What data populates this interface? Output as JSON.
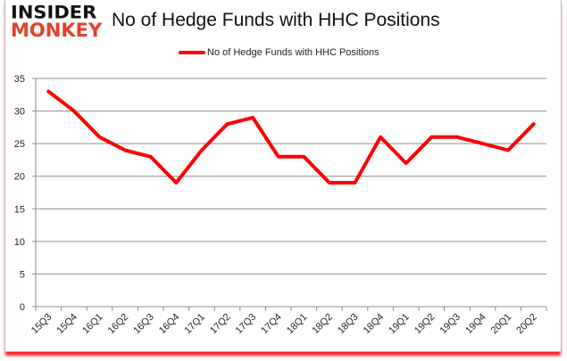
{
  "header": {
    "logo_line1": "INSIDER",
    "logo_line2": "MONKEY",
    "title": "No of Hedge Funds with HHC Positions"
  },
  "legend": {
    "label": "No of Hedge Funds with HHC Positions",
    "color": "#ff0000"
  },
  "chart_data": {
    "type": "line",
    "title": "No of Hedge Funds with HHC Positions",
    "xlabel": "",
    "ylabel": "",
    "ylim": [
      0,
      35
    ],
    "yticks": [
      0,
      5,
      10,
      15,
      20,
      25,
      30,
      35
    ],
    "grid": true,
    "legend_position": "top",
    "categories": [
      "15Q3",
      "15Q4",
      "16Q1",
      "16Q2",
      "16Q3",
      "16Q4",
      "17Q1",
      "17Q2",
      "17Q3",
      "17Q4",
      "18Q1",
      "18Q2",
      "18Q3",
      "18Q4",
      "19Q1",
      "19Q2",
      "19Q3",
      "19Q4",
      "20Q1",
      "20Q2"
    ],
    "series": [
      {
        "name": "No of Hedge Funds with HHC Positions",
        "color": "#ff0000",
        "values": [
          33,
          30,
          26,
          24,
          23,
          19,
          24,
          28,
          29,
          23,
          23,
          19,
          19,
          26,
          22,
          26,
          26,
          25,
          24,
          28
        ]
      }
    ]
  }
}
